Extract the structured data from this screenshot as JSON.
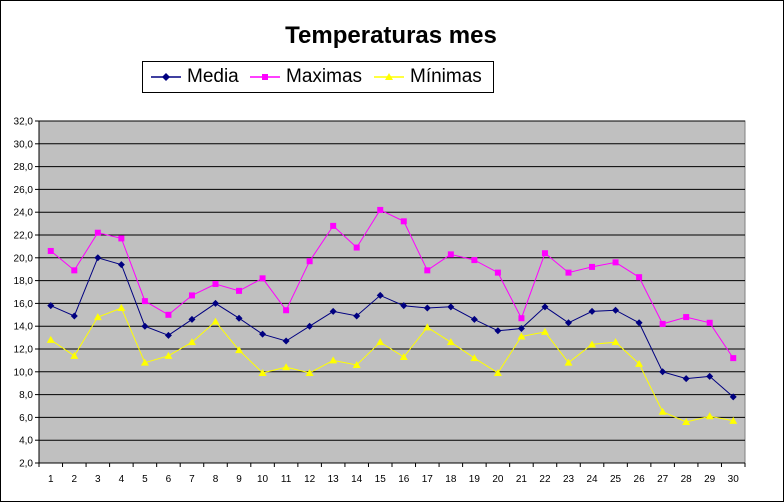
{
  "chart_data": {
    "type": "line",
    "title": "Temperaturas mes",
    "xlabel": "",
    "ylabel": "",
    "categories": [
      "1",
      "2",
      "3",
      "4",
      "5",
      "6",
      "7",
      "8",
      "9",
      "10",
      "11",
      "12",
      "13",
      "14",
      "15",
      "16",
      "17",
      "18",
      "19",
      "20",
      "21",
      "22",
      "23",
      "24",
      "25",
      "26",
      "27",
      "28",
      "29",
      "30"
    ],
    "ylim": [
      2.0,
      32.0
    ],
    "yticks": [
      "2,0",
      "4,0",
      "6,0",
      "8,0",
      "10,0",
      "12,0",
      "14,0",
      "16,0",
      "18,0",
      "20,0",
      "22,0",
      "24,0",
      "26,0",
      "28,0",
      "30,0",
      "32,0"
    ],
    "grid": true,
    "legend_position": "top",
    "plot_background": "#C0C0C0",
    "series": [
      {
        "name": "Media",
        "color": "#000080",
        "marker": "diamond",
        "values": [
          15.8,
          14.9,
          20.0,
          19.4,
          14.0,
          13.2,
          14.6,
          16.0,
          14.7,
          13.3,
          12.7,
          14.0,
          15.3,
          14.9,
          16.7,
          15.8,
          15.6,
          15.7,
          14.6,
          13.6,
          13.8,
          15.7,
          14.3,
          15.3,
          15.4,
          14.3,
          10.0,
          9.4,
          9.6,
          7.8
        ]
      },
      {
        "name": "Maximas",
        "color": "#FF00FF",
        "marker": "square",
        "values": [
          20.6,
          18.9,
          22.2,
          21.7,
          16.2,
          15.0,
          16.7,
          17.7,
          17.1,
          18.2,
          15.4,
          19.7,
          22.8,
          20.9,
          24.2,
          23.2,
          18.9,
          20.3,
          19.8,
          18.7,
          14.7,
          20.4,
          18.7,
          19.2,
          19.6,
          18.3,
          14.2,
          14.8,
          14.3,
          11.2
        ]
      },
      {
        "name": "Mínimas",
        "color": "#FFFF00",
        "marker": "triangle",
        "values": [
          12.8,
          11.4,
          14.8,
          15.6,
          10.8,
          11.4,
          12.6,
          14.4,
          11.9,
          9.9,
          10.4,
          9.9,
          11.0,
          10.6,
          12.6,
          11.3,
          13.9,
          12.6,
          11.2,
          9.9,
          13.1,
          13.5,
          10.8,
          12.4,
          12.6,
          10.7,
          6.5,
          5.6,
          6.1,
          5.7
        ]
      }
    ]
  }
}
